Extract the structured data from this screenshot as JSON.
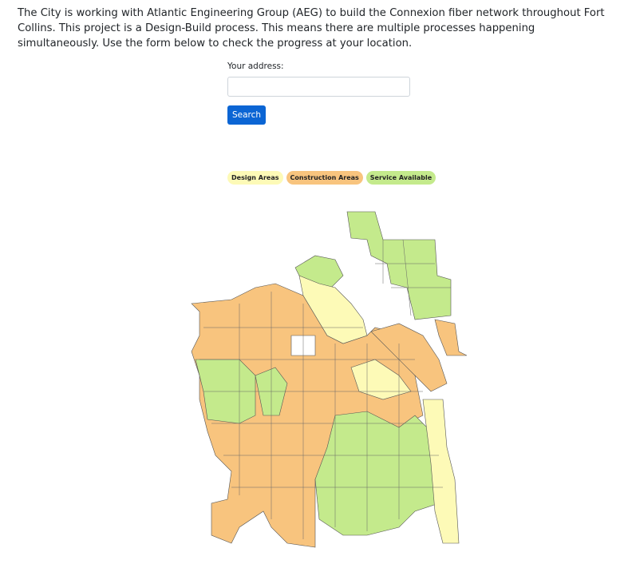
{
  "intro": "The City is working with Atlantic Engineering Group (AEG) to build the Connexion fiber network throughout Fort Collins. This project is a Design-Build process. This means there are multiple processes happening simultaneously. Use the form below to check the progress at your location.",
  "form": {
    "label": "Your address:",
    "button": "Search"
  },
  "legend": [
    {
      "name": "Design Areas",
      "color": "#fdfab7"
    },
    {
      "name": "Construction Areas",
      "color": "#f8c47e"
    },
    {
      "name": "Service Available",
      "color": "#c4ea8c"
    }
  ]
}
